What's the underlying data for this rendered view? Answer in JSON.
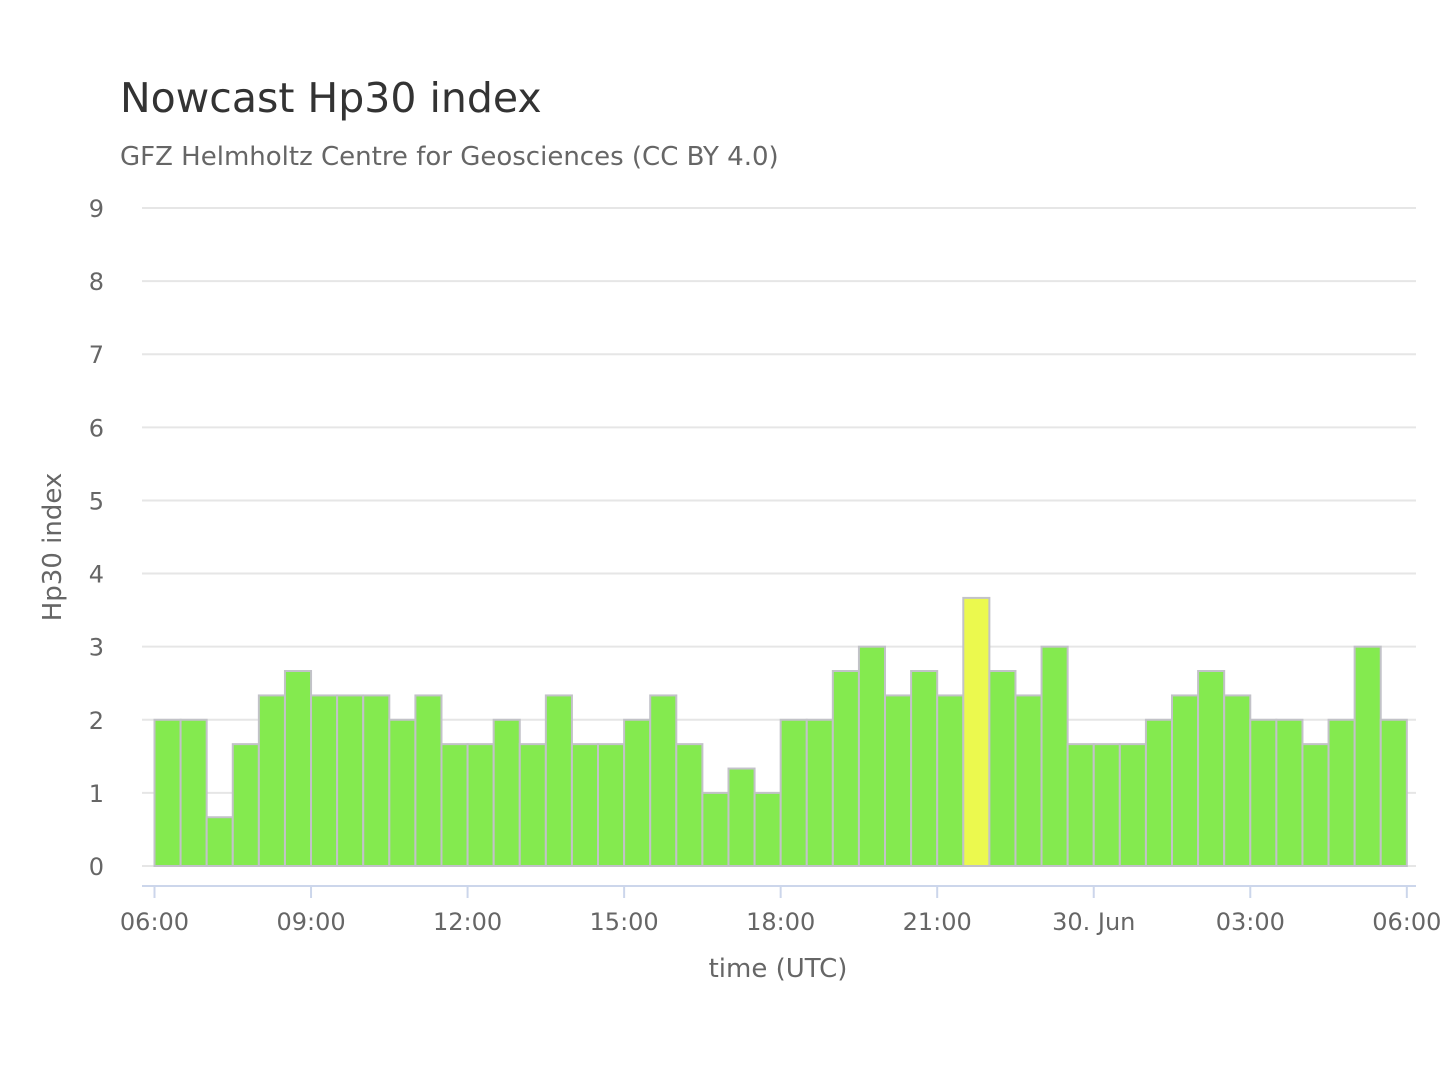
{
  "chart_data": {
    "type": "bar",
    "title": "Nowcast Hp30 index",
    "subtitle": "GFZ Helmholtz Centre for Geosciences (CC BY 4.0)",
    "xlabel": "time (UTC)",
    "ylabel": "Hp30 index",
    "ylim": [
      0,
      9
    ],
    "yticks": [
      "0",
      "1",
      "2",
      "3",
      "4",
      "5",
      "6",
      "7",
      "8",
      "9"
    ],
    "xticks": [
      "06:00",
      "09:00",
      "12:00",
      "15:00",
      "18:00",
      "21:00",
      "30. Jun",
      "03:00",
      "06:00"
    ],
    "x_unit": "half-hour intervals, 29 Jun 06:00 UTC to 30 Jun 06:00 UTC",
    "grid": true,
    "legend": "none",
    "values": [
      2,
      2,
      0.667,
      1.667,
      2.333,
      2.667,
      2.333,
      2.333,
      2.333,
      2,
      2.333,
      1.667,
      1.667,
      2,
      1.667,
      2.333,
      1.667,
      1.667,
      2,
      2.333,
      1.667,
      1,
      1.333,
      1,
      2,
      2,
      2.667,
      3,
      2.333,
      2.667,
      2.333,
      3.667,
      2.667,
      2.333,
      3,
      1.667,
      1.667,
      1.667,
      2,
      2.333,
      2.667,
      2.333,
      2,
      2,
      1.667,
      2,
      3,
      2
    ],
    "colors": {
      "quiet": "#84ea4f",
      "active": "#ebf94e",
      "active_threshold": 3.5,
      "bar_border": "#c2c2c8",
      "grid": "#e6e6e6",
      "axis": "#ccd6eb"
    }
  }
}
